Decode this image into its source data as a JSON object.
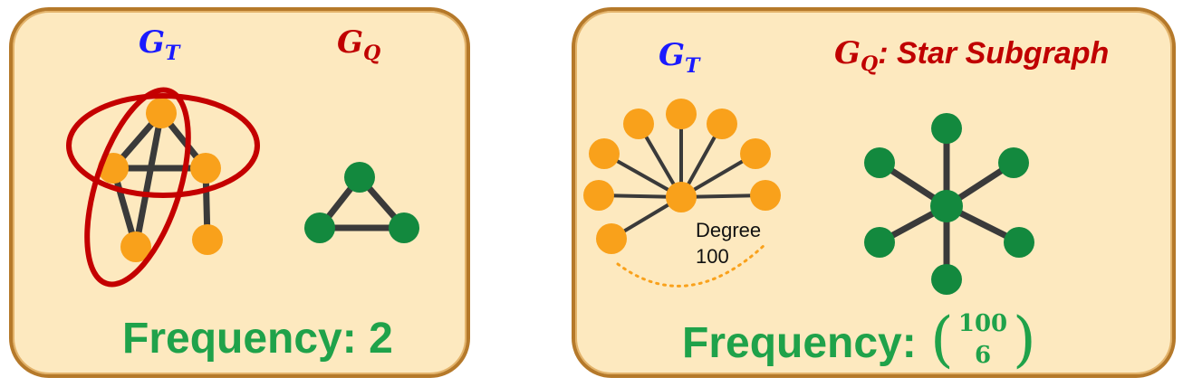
{
  "left_panel": {
    "gt_label": "G",
    "gt_sub": "T",
    "gq_label": "G",
    "gq_sub": "Q",
    "frequency": "Frequency: 2"
  },
  "right_panel": {
    "gt_label": "G",
    "gt_sub": "T",
    "gq_label": "G",
    "gq_sub": "Q",
    "gq_suffix": ": Star Subgraph",
    "degree_line1": "Degree",
    "degree_line2": "100",
    "frequency_prefix": "Frequency: ",
    "binom_top": "100",
    "binom_bottom": "6"
  },
  "colors": {
    "panel_fill": "#fde9bf",
    "panel_border": "#b5792a",
    "target_graph_node": "#f9a11b",
    "query_graph_node": "#13893e",
    "match_highlight": "#c40000",
    "gt_label": "#1a1aff",
    "gq_label": "#c00000",
    "frequency_text": "#1fa24a"
  }
}
